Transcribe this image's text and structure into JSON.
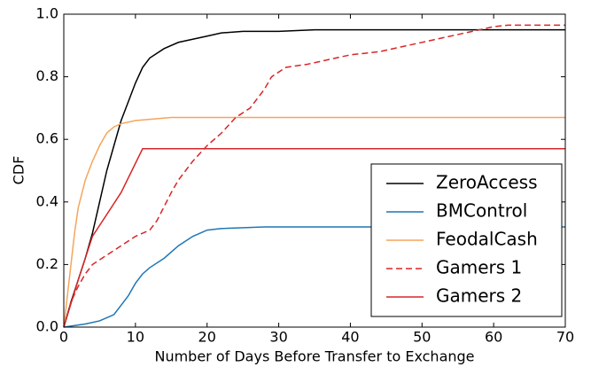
{
  "chart_data": {
    "type": "line",
    "xlabel": "Number of Days Before Transfer to Exchange",
    "ylabel": "CDF",
    "xlim": [
      0,
      70
    ],
    "ylim": [
      0,
      1
    ],
    "xticks": [
      0,
      10,
      20,
      30,
      40,
      50,
      60,
      70
    ],
    "yticks": [
      {
        "value": 0,
        "label": "0.0"
      },
      0.2,
      0.4,
      0.6,
      0.8,
      {
        "value": 1,
        "label": "1.0"
      }
    ],
    "grid": false,
    "legend": "lower right",
    "series": [
      {
        "name": "ZeroAccess",
        "color": "#000000",
        "linestyle": "solid",
        "x": [
          0,
          1,
          2,
          3,
          4,
          5,
          6,
          7,
          8,
          9,
          10,
          11,
          12,
          14,
          16,
          18,
          20,
          22,
          25,
          30,
          35,
          40,
          70
        ],
        "values": [
          0,
          0.08,
          0.15,
          0.22,
          0.3,
          0.4,
          0.5,
          0.58,
          0.66,
          0.72,
          0.78,
          0.83,
          0.86,
          0.89,
          0.91,
          0.92,
          0.93,
          0.94,
          0.945,
          0.945,
          0.95,
          0.95,
          0.95
        ]
      },
      {
        "name": "BMControl",
        "color": "#1f77b4",
        "linestyle": "solid",
        "x": [
          0,
          3,
          5,
          7,
          8,
          9,
          10,
          11,
          12,
          14,
          16,
          18,
          20,
          22,
          28,
          70
        ],
        "values": [
          0,
          0.01,
          0.02,
          0.04,
          0.07,
          0.1,
          0.14,
          0.17,
          0.19,
          0.22,
          0.26,
          0.29,
          0.31,
          0.315,
          0.32,
          0.32
        ]
      },
      {
        "name": "FeodalCash",
        "color": "#f5a55a",
        "linestyle": "solid",
        "x": [
          0,
          0.5,
          1,
          1.5,
          2,
          3,
          4,
          5,
          6,
          7,
          8,
          10,
          15,
          70
        ],
        "values": [
          0,
          0.1,
          0.2,
          0.3,
          0.38,
          0.47,
          0.53,
          0.58,
          0.62,
          0.64,
          0.65,
          0.66,
          0.67,
          0.67
        ]
      },
      {
        "name": "Gamers 1",
        "color": "#d62728",
        "linestyle": "dashed",
        "x": [
          0,
          1,
          2,
          3,
          4,
          6,
          8,
          10,
          11,
          12,
          13,
          15,
          16,
          18,
          20,
          22,
          24,
          26,
          28,
          29,
          31,
          34,
          36,
          40,
          44,
          48,
          52,
          56,
          60,
          62,
          70
        ],
        "values": [
          0,
          0.08,
          0.13,
          0.17,
          0.2,
          0.23,
          0.26,
          0.29,
          0.3,
          0.31,
          0.34,
          0.43,
          0.47,
          0.53,
          0.58,
          0.62,
          0.67,
          0.7,
          0.76,
          0.8,
          0.83,
          0.84,
          0.85,
          0.87,
          0.88,
          0.9,
          0.92,
          0.94,
          0.96,
          0.965,
          0.965
        ]
      },
      {
        "name": "Gamers 2",
        "color": "#d62728",
        "linestyle": "solid",
        "x": [
          0,
          2,
          4,
          8,
          11,
          70
        ],
        "values": [
          0,
          0.15,
          0.29,
          0.43,
          0.57,
          0.57
        ]
      }
    ]
  }
}
